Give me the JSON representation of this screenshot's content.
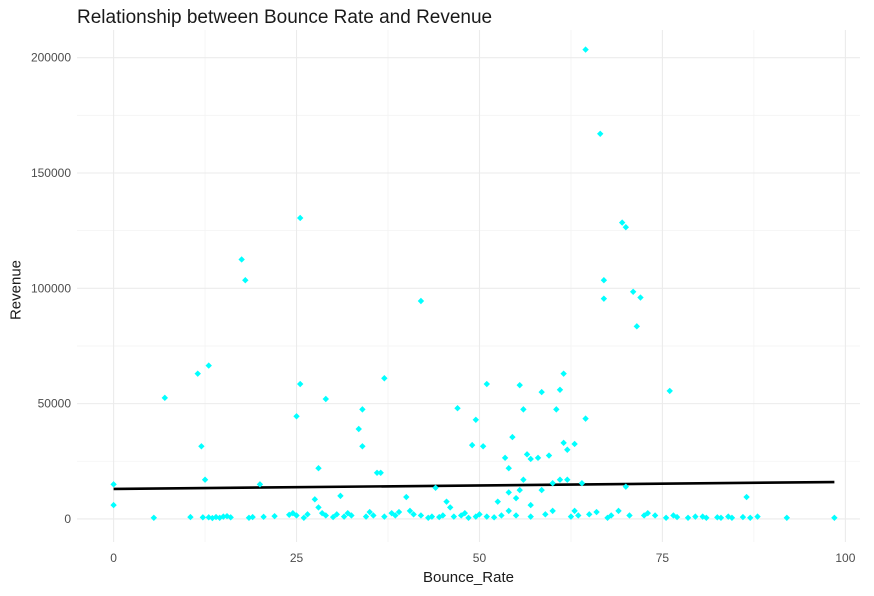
{
  "chart_data": {
    "type": "scatter",
    "title": "Relationship between Bounce Rate and Revenue",
    "xlabel": "Bounce_Rate",
    "ylabel": "Revenue",
    "xlim": [
      -5,
      102
    ],
    "ylim": [
      -10000,
      212000
    ],
    "x_ticks": [
      0,
      25,
      50,
      75,
      100
    ],
    "y_ticks": [
      0,
      50000,
      100000,
      150000,
      200000
    ],
    "grid": true,
    "point_color": "#00FFFF",
    "line_color": "#000000",
    "trend_line": {
      "x": [
        0,
        98.5
      ],
      "y": [
        13000,
        16000
      ]
    },
    "points": [
      [
        0,
        15000
      ],
      [
        0,
        6000
      ],
      [
        5.5,
        500
      ],
      [
        7,
        52500
      ],
      [
        10.5,
        800
      ],
      [
        11.5,
        63000
      ],
      [
        12,
        31500
      ],
      [
        12.5,
        17000
      ],
      [
        12.2,
        700
      ],
      [
        13,
        66500
      ],
      [
        13,
        700
      ],
      [
        13.5,
        400
      ],
      [
        14,
        800
      ],
      [
        14.5,
        500
      ],
      [
        15,
        1000
      ],
      [
        15.5,
        1200
      ],
      [
        16,
        700
      ],
      [
        17.5,
        112500
      ],
      [
        18,
        103500
      ],
      [
        18.5,
        500
      ],
      [
        19,
        800
      ],
      [
        20,
        15000
      ],
      [
        20.5,
        900
      ],
      [
        22,
        1200
      ],
      [
        24,
        1800
      ],
      [
        24.5,
        2500
      ],
      [
        25,
        44500
      ],
      [
        25.5,
        58500
      ],
      [
        25.5,
        130500
      ],
      [
        25,
        1500
      ],
      [
        26,
        500
      ],
      [
        26.5,
        2000
      ],
      [
        27.5,
        8500
      ],
      [
        28,
        22000
      ],
      [
        28,
        5000
      ],
      [
        28.5,
        2500
      ],
      [
        29,
        52000
      ],
      [
        29,
        1500
      ],
      [
        30,
        800
      ],
      [
        30.5,
        2000
      ],
      [
        31,
        10000
      ],
      [
        31.5,
        1000
      ],
      [
        32,
        2500
      ],
      [
        32.5,
        1500
      ],
      [
        33.5,
        39000
      ],
      [
        34,
        47500
      ],
      [
        34,
        31500
      ],
      [
        34.5,
        1000
      ],
      [
        35,
        3000
      ],
      [
        35.5,
        1500
      ],
      [
        36,
        20000
      ],
      [
        36.5,
        20000
      ],
      [
        37,
        61000
      ],
      [
        37,
        1000
      ],
      [
        38,
        2500
      ],
      [
        38.5,
        1500
      ],
      [
        39,
        3000
      ],
      [
        40,
        9500
      ],
      [
        40.5,
        3500
      ],
      [
        41,
        2000
      ],
      [
        42,
        94500
      ],
      [
        42,
        1500
      ],
      [
        43,
        500
      ],
      [
        43.5,
        1000
      ],
      [
        44,
        13500
      ],
      [
        44.5,
        800
      ],
      [
        45,
        1500
      ],
      [
        45.5,
        7500
      ],
      [
        46,
        5000
      ],
      [
        46.5,
        1000
      ],
      [
        47,
        48000
      ],
      [
        47.5,
        1500
      ],
      [
        48,
        2500
      ],
      [
        48.5,
        500
      ],
      [
        49,
        32000
      ],
      [
        49.5,
        43000
      ],
      [
        49.5,
        1000
      ],
      [
        50,
        2000
      ],
      [
        50.5,
        31500
      ],
      [
        51,
        58500
      ],
      [
        51,
        1000
      ],
      [
        52,
        700
      ],
      [
        52.5,
        7500
      ],
      [
        53,
        1500
      ],
      [
        53.5,
        26500
      ],
      [
        54,
        22000
      ],
      [
        54,
        11500
      ],
      [
        54,
        3500
      ],
      [
        54.5,
        35500
      ],
      [
        55,
        9000
      ],
      [
        55,
        1500
      ],
      [
        55.5,
        58000
      ],
      [
        55.5,
        12500
      ],
      [
        56,
        17000
      ],
      [
        56,
        47500
      ],
      [
        56.5,
        28000
      ],
      [
        57,
        26000
      ],
      [
        57,
        6000
      ],
      [
        57,
        1000
      ],
      [
        58,
        26500
      ],
      [
        58.5,
        55000
      ],
      [
        58.5,
        12500
      ],
      [
        59,
        2000
      ],
      [
        59.5,
        27500
      ],
      [
        60,
        15500
      ],
      [
        60,
        3500
      ],
      [
        60.5,
        47500
      ],
      [
        61,
        56000
      ],
      [
        61,
        17000
      ],
      [
        61.5,
        63000
      ],
      [
        61.5,
        33000
      ],
      [
        62,
        30000
      ],
      [
        62,
        17000
      ],
      [
        62.5,
        1000
      ],
      [
        63,
        3500
      ],
      [
        63,
        32500
      ],
      [
        63.5,
        1500
      ],
      [
        64,
        15500
      ],
      [
        64.5,
        203500
      ],
      [
        64.5,
        43500
      ],
      [
        65,
        2000
      ],
      [
        66,
        3000
      ],
      [
        66.5,
        167000
      ],
      [
        67,
        103500
      ],
      [
        67,
        95500
      ],
      [
        67.5,
        500
      ],
      [
        68,
        1500
      ],
      [
        69,
        3500
      ],
      [
        69.5,
        128500
      ],
      [
        70,
        126500
      ],
      [
        70,
        14000
      ],
      [
        70.5,
        1500
      ],
      [
        71,
        98500
      ],
      [
        71.5,
        83500
      ],
      [
        72,
        96000
      ],
      [
        72.5,
        1500
      ],
      [
        73,
        2500
      ],
      [
        74,
        1500
      ],
      [
        75.5,
        500
      ],
      [
        76,
        55500
      ],
      [
        76.5,
        1500
      ],
      [
        77,
        800
      ],
      [
        78.5,
        500
      ],
      [
        79.5,
        1000
      ],
      [
        80.5,
        1000
      ],
      [
        81,
        500
      ],
      [
        82.5,
        700
      ],
      [
        83,
        500
      ],
      [
        84,
        1000
      ],
      [
        84.5,
        500
      ],
      [
        86,
        800
      ],
      [
        86.5,
        9500
      ],
      [
        87,
        500
      ],
      [
        88,
        1000
      ],
      [
        92,
        500
      ],
      [
        98.5,
        500
      ]
    ]
  }
}
